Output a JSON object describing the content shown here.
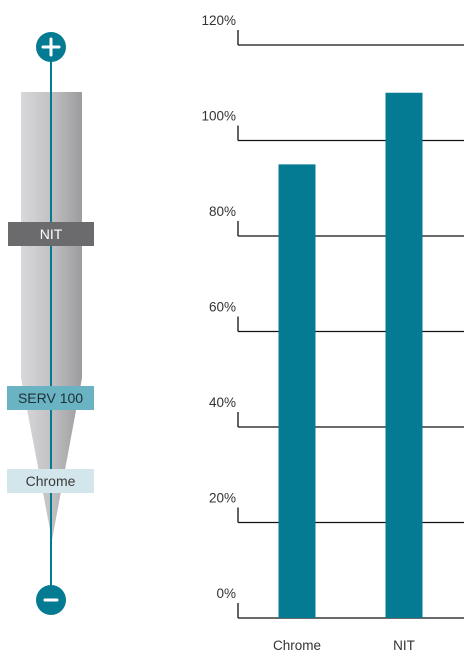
{
  "scale": {
    "plus_icon": "plus-icon",
    "minus_icon": "minus-icon",
    "accent_color": "#057b93",
    "labels": {
      "nit": "NIT",
      "serv": "SERV 100",
      "chrome": "Chrome"
    }
  },
  "chart_data": {
    "type": "bar",
    "categories": [
      "Chrome",
      "NIT"
    ],
    "values": [
      95,
      110
    ],
    "yticks": [
      "0%",
      "20%",
      "40%",
      "60%",
      "80%",
      "100%",
      "120%"
    ],
    "ylim": [
      0,
      120
    ],
    "bar_color": "#057b93",
    "grid": true,
    "title": "",
    "xlabel": "",
    "ylabel": ""
  }
}
